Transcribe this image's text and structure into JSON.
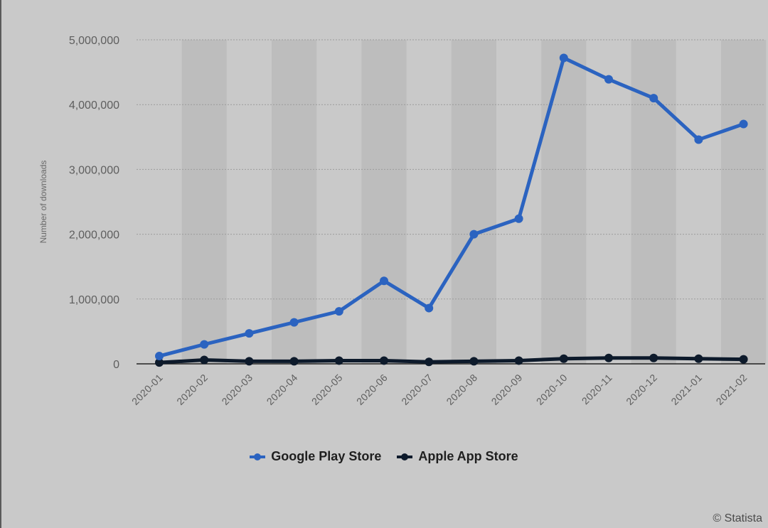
{
  "chart_data": {
    "type": "line",
    "ylabel": "Number of downloads",
    "xlabel": "",
    "ylim": [
      0,
      5000000
    ],
    "y_ticks": [
      0,
      1000000,
      2000000,
      3000000,
      4000000,
      5000000
    ],
    "y_tick_labels": [
      "0",
      "1,000,000",
      "2,000,000",
      "3,000,000",
      "4,000,000",
      "5,000,000"
    ],
    "categories": [
      "2020-01",
      "2020-02",
      "2020-03",
      "2020-04",
      "2020-05",
      "2020-06",
      "2020-07",
      "2020-08",
      "2020-09",
      "2020-10",
      "2020-11",
      "2020-12",
      "2021-01",
      "2021-02"
    ],
    "grid": true,
    "legend_position": "bottom-center",
    "series": [
      {
        "name": "Google Play Store",
        "color": "#2b63c0",
        "values": [
          120000,
          300000,
          470000,
          640000,
          810000,
          1280000,
          860000,
          2000000,
          2240000,
          4720000,
          4390000,
          4100000,
          3460000,
          3700000
        ]
      },
      {
        "name": "Apple App Store",
        "color": "#0d1a2b",
        "values": [
          20000,
          60000,
          40000,
          40000,
          50000,
          50000,
          30000,
          40000,
          50000,
          80000,
          90000,
          90000,
          80000,
          70000
        ]
      }
    ]
  },
  "credit": "© Statista"
}
